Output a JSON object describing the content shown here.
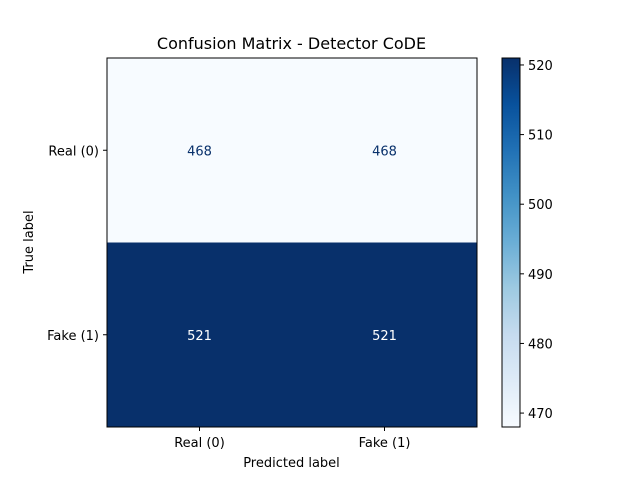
{
  "chart_data": {
    "type": "heatmap",
    "title": "Confusion Matrix - Detector CoDE",
    "xlabel": "Predicted label",
    "ylabel": "True label",
    "x_categories": [
      "Real (0)",
      "Fake (1)"
    ],
    "y_categories": [
      "Real (0)",
      "Fake (1)"
    ],
    "values": [
      [
        468,
        468
      ],
      [
        521,
        521
      ]
    ],
    "colormap": "Blues",
    "colorbar": {
      "min": 468,
      "max": 521,
      "ticks": [
        470,
        480,
        490,
        500,
        510,
        520
      ]
    },
    "cell_colors": {
      "low": "#f7fbff",
      "high": "#08306b"
    },
    "text_colors": {
      "on_light": "#08306b",
      "on_dark": "#ffffff"
    },
    "grid": false
  }
}
